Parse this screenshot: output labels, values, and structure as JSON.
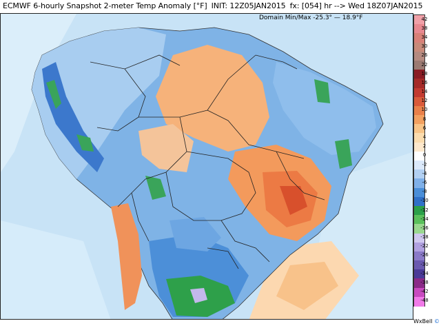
{
  "header": {
    "model": "ECMWF 6-hourly Snapshot 2-meter Temp Anomaly [°F]",
    "init": "INIT: 12Z05JAN2015",
    "forecast": "fx: [054] hr --> Wed 18Z07JAN2015"
  },
  "domain_minmax": "Domain Min/Max -25.3°  —  18.9°F",
  "legend": {
    "labels": [
      "42",
      "38",
      "34",
      "30",
      "26",
      "22",
      "18",
      "16",
      "14",
      "12",
      "10",
      "8",
      "6",
      "4",
      "2",
      "0",
      "-2",
      "-4",
      "-6",
      "-8",
      "-10",
      "-12",
      "-14",
      "-16",
      "-18",
      "-22",
      "-26",
      "-30",
      "-34",
      "-38",
      "-42",
      "-48"
    ],
    "colors": [
      "#f0a0a8",
      "#e78890",
      "#d88078",
      "#c88a7a",
      "#b58a80",
      "#9b7a72",
      "#8a1c24",
      "#a52a28",
      "#c23a30",
      "#d95a3a",
      "#e9804a",
      "#f2a060",
      "#f8c488",
      "#fbdcae",
      "#fde8cc",
      "#ffffff",
      "#dbe9fa",
      "#b2d0f2",
      "#7fb0e8",
      "#4a8ed8",
      "#2f70c8",
      "#2ba04a",
      "#5ac05c",
      "#9ad890",
      "#d0c8f0",
      "#b0a0e0",
      "#8a7ac8",
      "#6a5ab0",
      "#4a3a98",
      "#8a2a88",
      "#c84ac0",
      "#f07ae8"
    ]
  },
  "credit": {
    "a": "WxBell",
    "b": "©"
  }
}
